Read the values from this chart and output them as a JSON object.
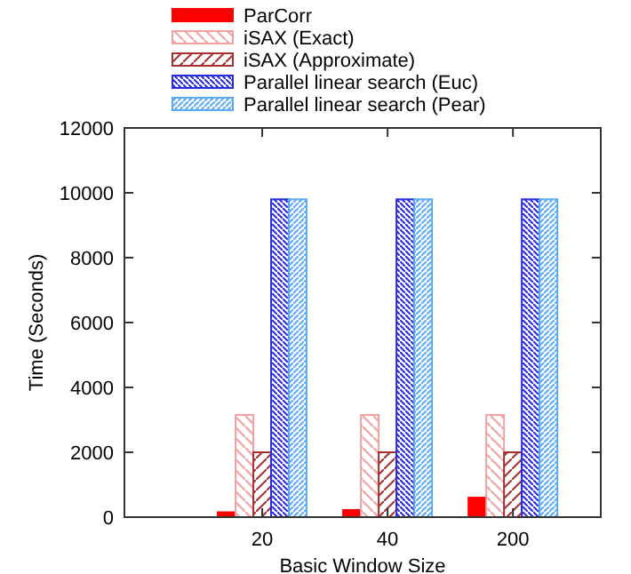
{
  "chart_data": {
    "type": "bar",
    "xlabel": "Basic Window Size",
    "ylabel": "Time (Seconds)",
    "categories": [
      "20",
      "40",
      "200"
    ],
    "series": [
      {
        "name": "ParCorr",
        "color": "#ff0000",
        "values": [
          150,
          220,
          600
        ]
      },
      {
        "name": "iSAX (Exact)",
        "color": "#f4a0a0",
        "values": [
          3150,
          3150,
          3150
        ]
      },
      {
        "name": "iSAX (Approximate)",
        "color": "#a83030",
        "values": [
          2000,
          2000,
          2000
        ]
      },
      {
        "name": "Parallel linear search (Euc)",
        "color": "#2a2ae0",
        "values": [
          9800,
          9800,
          9800
        ]
      },
      {
        "name": "Parallel linear search (Pear)",
        "color": "#5aaaf5",
        "values": [
          9800,
          9800,
          9800
        ]
      }
    ],
    "ylim": [
      0,
      12000
    ],
    "yticks": [
      0,
      2000,
      4000,
      6000,
      8000,
      10000,
      12000
    ],
    "legend": "top",
    "grid": false
  }
}
